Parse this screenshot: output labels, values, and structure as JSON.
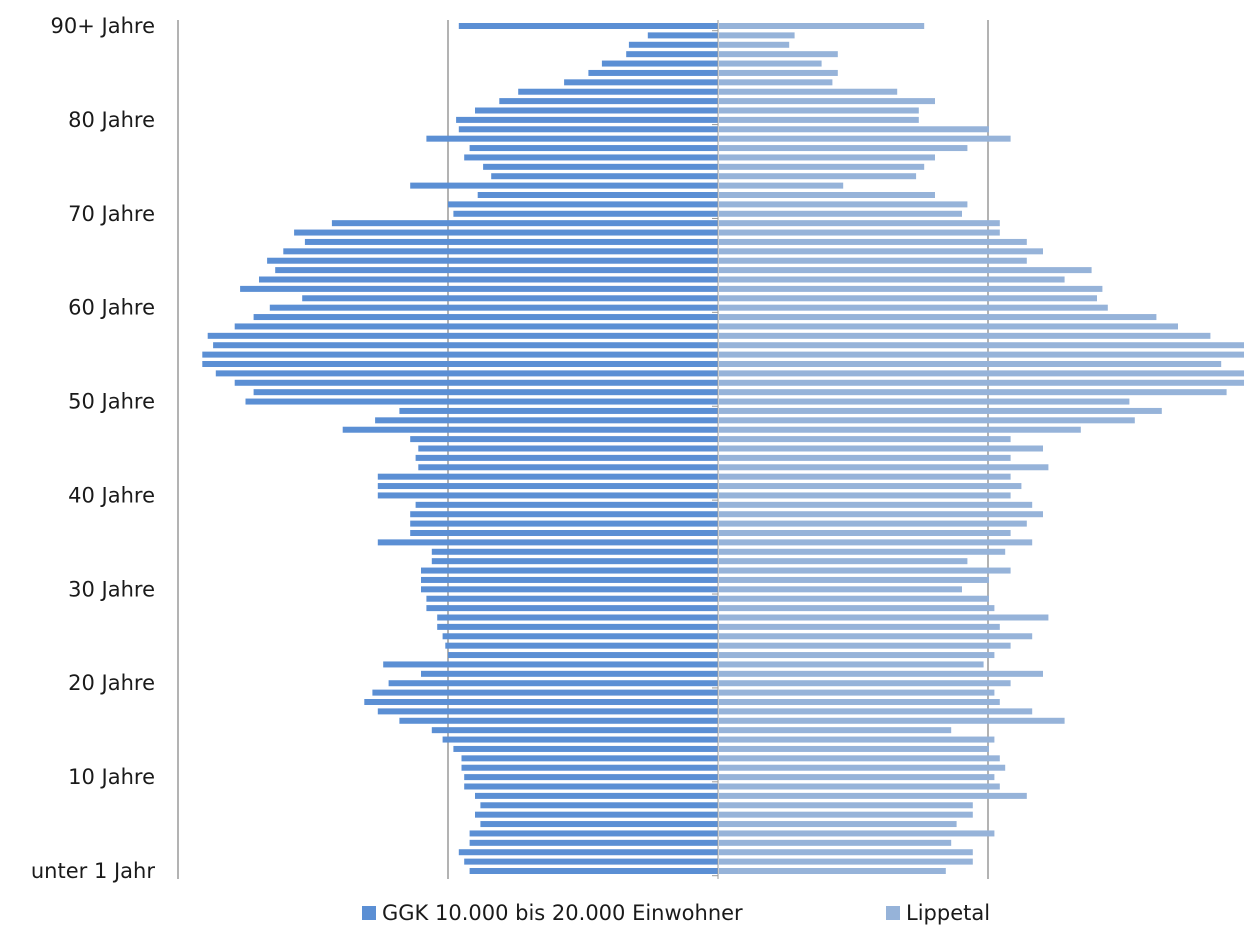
{
  "chart_data": {
    "type": "bar",
    "orientation": "horizontal-population-pyramid",
    "categories": [
      "unter 1 Jahr",
      "1",
      "2",
      "3",
      "4",
      "5",
      "6",
      "7",
      "8",
      "9",
      "10 Jahre",
      "11",
      "12",
      "13",
      "14",
      "15",
      "16",
      "17",
      "18",
      "19",
      "20 Jahre",
      "21",
      "22",
      "23",
      "24",
      "25",
      "26",
      "27",
      "28",
      "29",
      "30 Jahre",
      "31",
      "32",
      "33",
      "34",
      "35",
      "36",
      "37",
      "38",
      "39",
      "40 Jahre",
      "41",
      "42",
      "43",
      "44",
      "45",
      "46",
      "47",
      "48",
      "49",
      "50 Jahre",
      "51",
      "52",
      "53",
      "54",
      "55",
      "56",
      "57",
      "58",
      "59",
      "60 Jahre",
      "61",
      "62",
      "63",
      "64",
      "65",
      "66",
      "67",
      "68",
      "69",
      "70 Jahre",
      "71",
      "72",
      "73",
      "74",
      "75",
      "76",
      "77",
      "78",
      "79",
      "80 Jahre",
      "81",
      "82",
      "83",
      "84",
      "85",
      "86",
      "87",
      "88",
      "89",
      "90+ Jahre"
    ],
    "tick_labels": [
      "unter 1 Jahr",
      "10 Jahre",
      "20 Jahre",
      "30 Jahre",
      "40 Jahre",
      "50 Jahre",
      "60 Jahre",
      "70 Jahre",
      "80 Jahre",
      "90+ Jahre"
    ],
    "series": [
      {
        "name": "GGK 10.000 bis 20.000 Einwohner",
        "color": "#5b8fd4",
        "side": "left",
        "values": [
          0.92,
          0.94,
          0.96,
          0.92,
          0.92,
          0.88,
          0.9,
          0.88,
          0.9,
          0.94,
          0.94,
          0.95,
          0.95,
          0.98,
          1.02,
          1.06,
          1.18,
          1.26,
          1.31,
          1.28,
          1.22,
          1.1,
          1.24,
          1.0,
          1.01,
          1.02,
          1.04,
          1.04,
          1.08,
          1.08,
          1.1,
          1.1,
          1.1,
          1.06,
          1.06,
          1.26,
          1.14,
          1.14,
          1.14,
          1.12,
          1.26,
          1.26,
          1.26,
          1.11,
          1.12,
          1.11,
          1.14,
          1.39,
          1.27,
          1.18,
          1.75,
          1.72,
          1.79,
          1.86,
          1.91,
          1.91,
          1.87,
          1.89,
          1.79,
          1.72,
          1.66,
          1.54,
          1.77,
          1.7,
          1.64,
          1.67,
          1.61,
          1.53,
          1.57,
          1.43,
          0.98,
          1.0,
          0.89,
          1.14,
          0.84,
          0.87,
          0.94,
          0.92,
          1.08,
          0.96,
          0.97,
          0.9,
          0.81,
          0.74,
          0.57,
          0.48,
          0.43,
          0.34,
          0.33,
          0.26,
          0.96
        ]
      },
      {
        "name": "Lippetal",
        "color": "#96b3d9",
        "side": "right",
        "values": [
          0.84,
          0.94,
          0.94,
          0.86,
          1.02,
          0.88,
          0.94,
          0.94,
          1.14,
          1.04,
          1.02,
          1.06,
          1.04,
          1.0,
          1.02,
          0.86,
          1.28,
          1.16,
          1.04,
          1.02,
          1.08,
          1.2,
          0.98,
          1.02,
          1.08,
          1.16,
          1.04,
          1.22,
          1.02,
          1.0,
          0.9,
          1.0,
          1.08,
          0.92,
          1.06,
          1.16,
          1.08,
          1.14,
          1.2,
          1.16,
          1.08,
          1.12,
          1.08,
          1.22,
          1.08,
          1.2,
          1.08,
          1.34,
          1.54,
          1.64,
          1.52,
          1.88,
          2.04,
          2.02,
          1.86,
          2.16,
          1.96,
          1.82,
          1.7,
          1.62,
          1.44,
          1.4,
          1.42,
          1.28,
          1.38,
          1.14,
          1.2,
          1.14,
          1.04,
          1.04,
          0.9,
          0.92,
          0.8,
          0.46,
          0.73,
          0.76,
          0.8,
          0.92,
          1.08,
          1.0,
          0.74,
          0.74,
          0.8,
          0.66,
          0.42,
          0.44,
          0.38,
          0.44,
          0.26,
          0.28,
          0.76
        ]
      }
    ],
    "xlim": [
      -2.0,
      2.0
    ],
    "grid": "vertical",
    "legend": "bottom"
  }
}
